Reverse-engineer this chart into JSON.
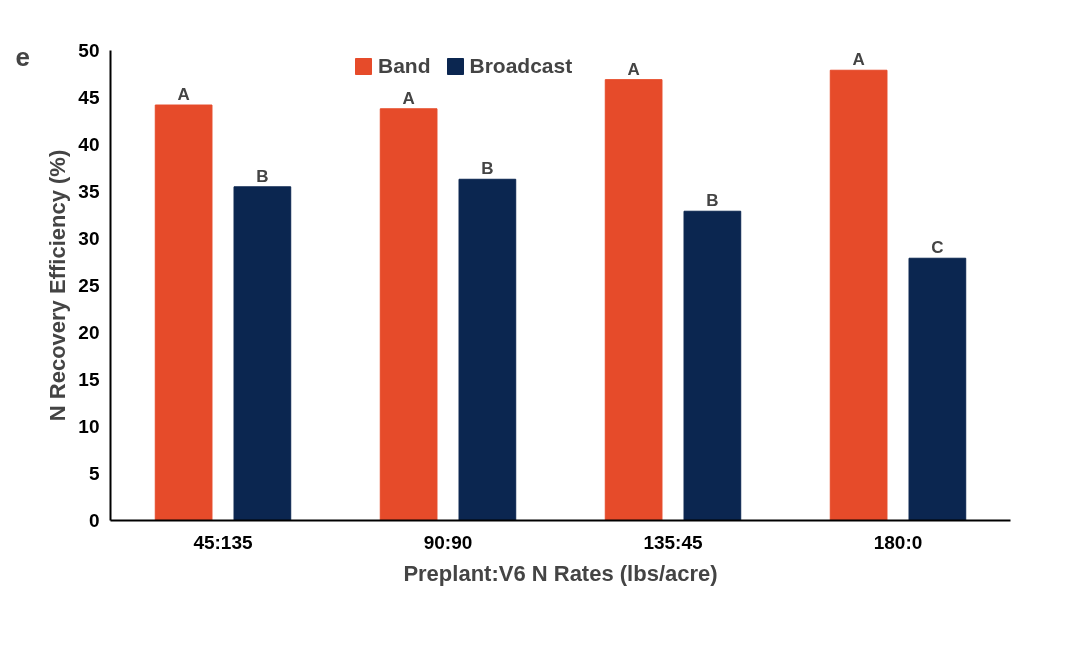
{
  "chart_data": {
    "type": "bar",
    "xlabel": "Preplant:V6 N Rates (lbs/acre)",
    "ylabel": "N Recovery Efficiency (%)",
    "categories": [
      "45:135",
      "90:90",
      "135:45",
      "180:0"
    ],
    "series": [
      {
        "name": "Band",
        "color": "#e64b2a",
        "values": [
          44.2,
          43.8,
          46.9,
          47.9
        ],
        "value_labels": [
          "A",
          "A",
          "A",
          "A"
        ]
      },
      {
        "name": "Broadcast",
        "color": "#0b2650",
        "values": [
          35.5,
          36.3,
          32.9,
          27.9
        ],
        "value_labels": [
          "B",
          "B",
          "B",
          "C"
        ]
      }
    ],
    "ylim": [
      0,
      50
    ],
    "yticks": [
      0,
      5,
      10,
      15,
      20,
      25,
      30,
      35,
      40,
      45,
      50
    ],
    "grid": false,
    "legend": "top",
    "annotations": [
      "e"
    ]
  }
}
